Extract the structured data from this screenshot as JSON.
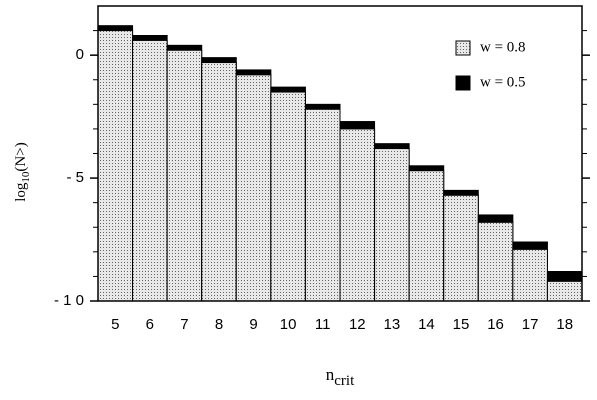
{
  "chart_data": {
    "type": "bar",
    "ylabel": {
      "main": "log",
      "sub": "10",
      "rest": "(N>)"
    },
    "xlabel": {
      "main": "n",
      "sub": "crit"
    },
    "categories": [
      "5",
      "6",
      "7",
      "8",
      "9",
      "10",
      "11",
      "12",
      "13",
      "14",
      "15",
      "16",
      "17",
      "18"
    ],
    "series": [
      {
        "name": "w = 0.8",
        "color": "#e6e6e6",
        "pattern": "dots",
        "values": [
          1.0,
          0.6,
          0.2,
          -0.3,
          -0.8,
          -1.5,
          -2.2,
          -3.0,
          -3.8,
          -4.7,
          -5.7,
          -6.8,
          -7.9,
          -9.2
        ]
      },
      {
        "name": "w = 0.5",
        "color": "#000000",
        "values": [
          1.2,
          0.8,
          0.4,
          -0.1,
          -0.6,
          -1.3,
          -2.0,
          -2.7,
          -3.6,
          -4.5,
          -5.5,
          -6.5,
          -7.6,
          -8.8
        ]
      }
    ],
    "ylim": [
      -10,
      2
    ],
    "yticks": [
      {
        "value": 0,
        "label": "0"
      },
      {
        "value": -5,
        "label": "- 5"
      },
      {
        "value": -10,
        "label": "- 1 0"
      }
    ],
    "minor_yticks": [
      1,
      -1,
      -2,
      -3,
      -4,
      -6,
      -7,
      -8,
      -9
    ],
    "legend": "upper right"
  }
}
